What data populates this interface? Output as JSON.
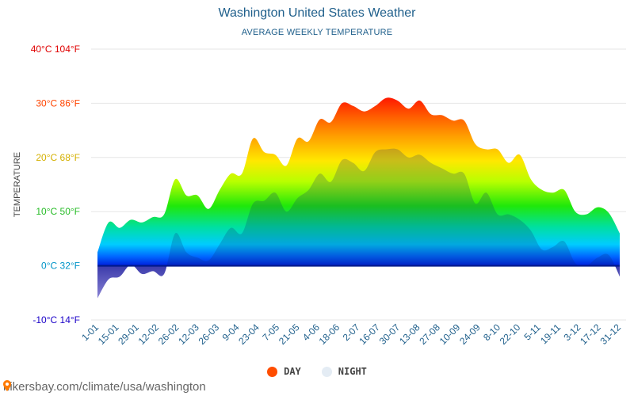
{
  "title": "Washington United States Weather",
  "subtitle": "AVERAGE WEEKLY TEMPERATURE",
  "legend": {
    "day": "DAY",
    "night": "NIGHT"
  },
  "source_url": "hikersbay.com/climate/usa/washington",
  "colors": {
    "day_legend": "#ff4d00",
    "night_legend": "#e4ecf4",
    "axis_text": "#1f5f8b",
    "grid": "#e6e6e6"
  },
  "chart_data": {
    "type": "area",
    "title": "Washington United States Weather",
    "subtitle": "AVERAGE WEEKLY TEMPERATURE",
    "ylabel": "TEMPERATURE",
    "xlabel": "",
    "ylim": [
      -10,
      40
    ],
    "yticks": [
      {
        "value": 40,
        "label": "40°C 104°F",
        "color": "#e00000"
      },
      {
        "value": 30,
        "label": "30°C 86°F",
        "color": "#ff4400"
      },
      {
        "value": 20,
        "label": "20°C 68°F",
        "color": "#d4b000"
      },
      {
        "value": 10,
        "label": "10°C 50°F",
        "color": "#26bc26"
      },
      {
        "value": 0,
        "label": "0°C 32°F",
        "color": "#0094c8"
      },
      {
        "value": -10,
        "label": "-10°C 14°F",
        "color": "#1a00c8"
      }
    ],
    "xtick_labels": [
      "1-01",
      "15-01",
      "29-01",
      "12-02",
      "26-02",
      "12-03",
      "26-03",
      "9-04",
      "23-04",
      "7-05",
      "21-05",
      "4-06",
      "18-06",
      "2-07",
      "16-07",
      "30-07",
      "13-08",
      "27-08",
      "10-09",
      "24-09",
      "8-10",
      "22-10",
      "5-11",
      "19-11",
      "3-12",
      "17-12",
      "31-12"
    ],
    "series": [
      {
        "name": "DAY",
        "values": [
          2.5,
          8,
          7,
          8.5,
          8,
          9,
          9.5,
          16,
          13,
          13,
          10.5,
          14,
          17,
          17,
          23.5,
          21,
          20.5,
          18.5,
          23.5,
          23,
          27,
          26.5,
          30,
          29.5,
          28.5,
          29.5,
          31,
          30.5,
          29,
          30.5,
          28,
          27.8,
          26.8,
          26.8,
          22.5,
          21.5,
          21.5,
          19,
          20.5,
          16,
          14,
          13.5,
          14,
          10,
          9.5,
          10.8,
          9.8,
          6
        ]
      },
      {
        "name": "NIGHT",
        "values": [
          -6,
          -2.5,
          -2,
          0.2,
          -1.5,
          -1,
          -1.5,
          6,
          2.5,
          1.5,
          1,
          4,
          7,
          6,
          11.5,
          12,
          13.5,
          10,
          12.5,
          14,
          17,
          15.5,
          19.5,
          19,
          17.5,
          21,
          21.5,
          21.5,
          20,
          20.5,
          19,
          18,
          17,
          17,
          11.5,
          13.5,
          9.5,
          9.5,
          8.5,
          6.5,
          3,
          3.5,
          4.5,
          0.5,
          0,
          1.5,
          2,
          -2
        ]
      }
    ]
  }
}
